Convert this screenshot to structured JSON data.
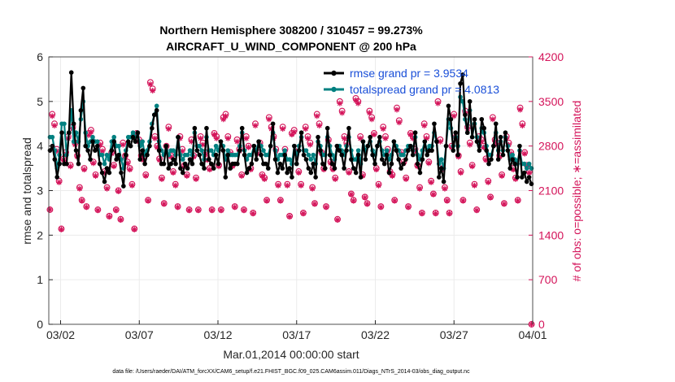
{
  "chart_data": {
    "type": "line",
    "title": "Northern Hemisphere 308200 / 310457 = 99.273%",
    "subtitle": "AIRCRAFT_U_WIND_COMPONENT @ 200 hPa",
    "xlabel": "Mar.01,2014 00:00:00 start",
    "ylabel_left": "rmse and totalspread",
    "ylabel_right": "# of obs: o=possible; ∗=assimilated",
    "footer": "data file: /Users/raeder/DAI/ATM_forcXX/CAM6_setup/f.e21.FHIST_BGC.f09_025.CAM6assim.011/Diags_NTrS_2014-03/obs_diag_output.nc",
    "xlim": [
      0.5,
      31.25
    ],
    "ylim_left": [
      0,
      6
    ],
    "ylim_right": [
      0,
      4200
    ],
    "x_ticks": [
      1.25,
      6.25,
      11.25,
      16.25,
      21.25,
      26.25,
      31.25
    ],
    "x_tick_labels": [
      "03/02",
      "03/07",
      "03/12",
      "03/17",
      "03/22",
      "03/27",
      "04/01"
    ],
    "y_ticks_left": [
      "0",
      "1",
      "2",
      "3",
      "4",
      "5",
      "6"
    ],
    "y_ticks_right": [
      "0",
      "700",
      "1400",
      "2100",
      "2800",
      "3500",
      "4200"
    ],
    "colors": {
      "rmse": "#000000",
      "spread": "#008080",
      "obs": "#d4145a",
      "legend_text": "#1a4fd8",
      "right_axis": "#d4145a"
    },
    "series": [
      {
        "name": "rmse grand pr = 3.9534",
        "axis": "left",
        "values": [
          3.9,
          4.0,
          3.7,
          3.3,
          3.6,
          4.3,
          3.6,
          3.6,
          4.3,
          5.65,
          4.5,
          3.9,
          3.6,
          4.8,
          5.3,
          4.0,
          3.9,
          3.7,
          4.1,
          3.9,
          4.0,
          3.6,
          3.4,
          3.2,
          3.5,
          3.4,
          3.9,
          4.1,
          3.7,
          3.8,
          3.4,
          3.1,
          3.8,
          4.1,
          4.0,
          4.2,
          4.1,
          4.3,
          3.7,
          3.9,
          3.6,
          3.8,
          4.0,
          4.4,
          4.7,
          4.8,
          3.9,
          3.6,
          3.6,
          4.0,
          3.5,
          3.6,
          3.7,
          3.6,
          4.2,
          3.5,
          3.4,
          3.6,
          3.5,
          3.7,
          3.6,
          4.4,
          3.9,
          3.8,
          3.6,
          3.5,
          4.4,
          3.7,
          3.6,
          3.5,
          3.8,
          3.6,
          4.1,
          3.9,
          3.3,
          3.8,
          3.5,
          3.6,
          3.6,
          3.6,
          3.9,
          4.4,
          3.8,
          3.4,
          3.5,
          3.6,
          4.0,
          3.7,
          4.1,
          3.8,
          3.6,
          3.6,
          3.5,
          4.0,
          4.5,
          3.7,
          3.4,
          3.6,
          3.5,
          3.8,
          3.4,
          3.5,
          3.3,
          4.0,
          3.6,
          3.9,
          4.3,
          3.8,
          3.7,
          3.5,
          3.4,
          3.6,
          3.3,
          4.2,
          3.9,
          3.6,
          3.5,
          4.4,
          3.8,
          3.6,
          3.5,
          4.0,
          3.9,
          3.8,
          3.5,
          3.9,
          4.4,
          3.7,
          3.5,
          3.4,
          3.8,
          3.3,
          4.1,
          3.7,
          4.0,
          4.2,
          3.8,
          3.6,
          4.0,
          4.2,
          3.7,
          3.6,
          3.8,
          3.4,
          3.6,
          4.1,
          3.9,
          3.7,
          3.5,
          3.6,
          3.7,
          3.9,
          4.0,
          3.8,
          4.3,
          3.6,
          3.4,
          3.7,
          4.1,
          3.8,
          3.9,
          3.9,
          4.5,
          4.1,
          3.3,
          3.5,
          3.2,
          4.0,
          4.9,
          4.6,
          3.9,
          4.3,
          3.8,
          5.4,
          5.6,
          4.7,
          4.3,
          5.0,
          4.2,
          4.6,
          4.1,
          3.9,
          4.6,
          4.4,
          3.9,
          3.6,
          3.7,
          4.0,
          4.5,
          3.7,
          4.2,
          3.8,
          4.3,
          3.9,
          3.5,
          3.7,
          3.6,
          3.3,
          4.0,
          3.3,
          3.4,
          3.2,
          3.3,
          3.15
        ]
      },
      {
        "name": "totalspread grand pr = 4.0813",
        "axis": "left",
        "values": [
          4.2,
          4.2,
          3.9,
          3.5,
          3.8,
          4.5,
          4.5,
          3.8,
          4.3,
          4.8,
          4.1,
          4.3,
          4.1,
          4.6,
          5.0,
          4.3,
          4.0,
          4.1,
          4.2,
          4.1,
          4.1,
          3.8,
          3.8,
          3.6,
          3.8,
          3.7,
          4.1,
          4.2,
          4.0,
          4.0,
          3.7,
          3.5,
          3.9,
          4.2,
          4.2,
          4.3,
          4.2,
          4.3,
          4.0,
          4.1,
          3.8,
          3.9,
          4.1,
          4.5,
          4.7,
          4.9,
          4.1,
          3.9,
          3.8,
          4.0,
          3.8,
          3.9,
          3.9,
          3.8,
          4.2,
          3.8,
          3.7,
          3.8,
          3.8,
          3.9,
          3.8,
          4.3,
          4.0,
          4.0,
          3.9,
          3.7,
          4.2,
          3.9,
          3.9,
          3.8,
          4.0,
          3.9,
          4.1,
          4.0,
          3.7,
          3.9,
          3.8,
          3.8,
          3.8,
          3.8,
          4.0,
          4.3,
          3.9,
          3.7,
          3.8,
          3.8,
          4.0,
          3.9,
          4.1,
          4.0,
          3.9,
          3.8,
          3.8,
          4.0,
          4.3,
          3.9,
          3.7,
          3.8,
          3.8,
          3.9,
          3.7,
          3.7,
          3.6,
          4.0,
          3.8,
          4.0,
          4.2,
          3.9,
          3.9,
          3.8,
          3.7,
          3.8,
          3.6,
          4.1,
          4.0,
          3.8,
          3.8,
          4.2,
          4.0,
          3.8,
          3.7,
          4.0,
          4.0,
          3.9,
          3.8,
          4.0,
          4.2,
          3.9,
          3.7,
          3.7,
          3.9,
          3.6,
          4.1,
          3.9,
          4.0,
          4.1,
          3.9,
          3.8,
          4.0,
          4.1,
          3.9,
          3.8,
          3.9,
          3.7,
          3.8,
          4.1,
          4.0,
          3.9,
          3.8,
          3.8,
          3.9,
          4.0,
          4.0,
          3.9,
          4.2,
          3.8,
          3.7,
          3.9,
          4.1,
          3.9,
          4.0,
          4.0,
          4.3,
          4.1,
          3.6,
          3.7,
          3.5,
          4.0,
          4.6,
          4.4,
          4.0,
          4.2,
          4.0,
          5.1,
          5.0,
          4.6,
          4.3,
          4.8,
          4.2,
          4.5,
          4.2,
          4.0,
          4.4,
          4.3,
          4.0,
          3.8,
          3.8,
          4.0,
          4.3,
          3.9,
          4.1,
          3.9,
          4.2,
          4.0,
          3.7,
          3.8,
          3.7,
          3.6,
          3.9,
          3.6,
          3.6,
          3.5,
          3.6,
          3.5
        ]
      },
      {
        "name": "possible",
        "axis": "right",
        "marker": "o",
        "values": [
          1800,
          3300,
          3150,
          2750,
          2250,
          1500,
          2600,
          2700,
          2950,
          2500,
          3100,
          2850,
          2650,
          2150,
          1950,
          2450,
          1850,
          3000,
          3050,
          2550,
          2350,
          1800,
          2850,
          2750,
          2400,
          2150,
          1700,
          2700,
          2500,
          1800,
          2100,
          1650,
          2850,
          2650,
          2550,
          2450,
          2200,
          1500,
          3000,
          2900,
          2650,
          2600,
          2350,
          1950,
          3800,
          3700,
          2950,
          2800,
          2600,
          2300,
          1900,
          2800,
          3100,
          2650,
          2400,
          2200,
          1850,
          2950,
          2750,
          2500,
          2350,
          1800,
          2900,
          2650,
          2300,
          1800,
          2950,
          2850,
          2700,
          2600,
          2450,
          1800,
          3000,
          2950,
          2500,
          1800,
          3250,
          3300,
          2950,
          2700,
          2500,
          1850,
          2900,
          2750,
          2350,
          1800,
          2950,
          2800,
          2450,
          1750,
          3150,
          2700,
          2850,
          2350,
          2300,
          1950,
          3250,
          3100,
          2950,
          2750,
          2200,
          1950,
          3100,
          2750,
          2200,
          1700,
          3000,
          3050,
          2750,
          2400,
          2200,
          1750,
          3100,
          2950,
          2850,
          2150,
          1900,
          3300,
          3150,
          2700,
          2450,
          1850,
          2900,
          2550,
          2450,
          2300,
          1650,
          3500,
          3350,
          2950,
          2850,
          2400,
          2050,
          1950,
          3550,
          3500,
          2950,
          2350,
          2000,
          1900,
          3350,
          3250,
          3000,
          2450,
          2200,
          1850,
          3100,
          2950,
          2750,
          2400,
          2350,
          1950,
          3400,
          3200,
          2700,
          2550,
          2300,
          1850,
          3000,
          2950,
          2750,
          2500,
          2150,
          1750,
          3150,
          2950,
          2550,
          2250,
          2050,
          1750,
          3500,
          2900,
          2450,
          2150,
          1950,
          1750,
          2800,
          3300,
          2950,
          2650,
          2400,
          1950,
          3350,
          3100,
          2850,
          2500,
          2200,
          1800,
          2950,
          2900,
          2800,
          2600,
          2250,
          2000,
          3250,
          2900,
          2850,
          2650,
          2350,
          1900,
          2950,
          2850,
          2700,
          2450,
          2300,
          1950,
          3400,
          3150,
          2700,
          2500,
          2400,
          0
        ]
      },
      {
        "name": "assimilated",
        "axis": "right",
        "marker": "*",
        "values": [
          1800,
          3270,
          3120,
          2720,
          2230,
          1490,
          2580,
          2680,
          2920,
          2480,
          3070,
          2820,
          2630,
          2130,
          1940,
          2430,
          1840,
          2970,
          3020,
          2530,
          2330,
          1790,
          2820,
          2720,
          2380,
          2130,
          1690,
          2680,
          2480,
          1790,
          2090,
          1640,
          2820,
          2630,
          2530,
          2430,
          2180,
          1490,
          2980,
          2870,
          2630,
          2580,
          2330,
          1940,
          3770,
          3670,
          2920,
          2780,
          2580,
          2280,
          1890,
          2780,
          3070,
          2630,
          2380,
          2180,
          1840,
          2920,
          2720,
          2480,
          2330,
          1790,
          2870,
          2630,
          2280,
          1790,
          2920,
          2820,
          2680,
          2580,
          2430,
          1790,
          2980,
          2920,
          2480,
          1790,
          3220,
          3270,
          2920,
          2680,
          2480,
          1840,
          2870,
          2720,
          2330,
          1790,
          2920,
          2780,
          2430,
          1740,
          3120,
          2680,
          2820,
          2330,
          2280,
          1940,
          3220,
          3070,
          2920,
          2720,
          2180,
          1940,
          3070,
          2720,
          2180,
          1690,
          2980,
          3020,
          2720,
          2380,
          2180,
          1740,
          3070,
          2920,
          2820,
          2130,
          1890,
          3270,
          3120,
          2680,
          2430,
          1840,
          2870,
          2530,
          2430,
          2280,
          1640,
          3470,
          3320,
          2920,
          2820,
          2380,
          2040,
          1940,
          3520,
          3470,
          2920,
          2330,
          1990,
          1890,
          3320,
          3220,
          2980,
          2430,
          2180,
          1840,
          3070,
          2920,
          2720,
          2380,
          2330,
          1940,
          3370,
          3170,
          2680,
          2530,
          2280,
          1840,
          2980,
          2920,
          2720,
          2480,
          2130,
          1740,
          3120,
          2920,
          2530,
          2230,
          2040,
          1740,
          3470,
          2870,
          2430,
          2130,
          1940,
          1740,
          2780,
          3270,
          2920,
          2630,
          2380,
          1940,
          3320,
          3070,
          2820,
          2480,
          2180,
          1790,
          2920,
          2870,
          2780,
          2580,
          2230,
          1990,
          3220,
          2870,
          2820,
          2630,
          2330,
          1890,
          2920,
          2820,
          2680,
          2430,
          2280,
          1940,
          3370,
          3120,
          2680,
          2480,
          2380,
          0
        ]
      }
    ]
  }
}
